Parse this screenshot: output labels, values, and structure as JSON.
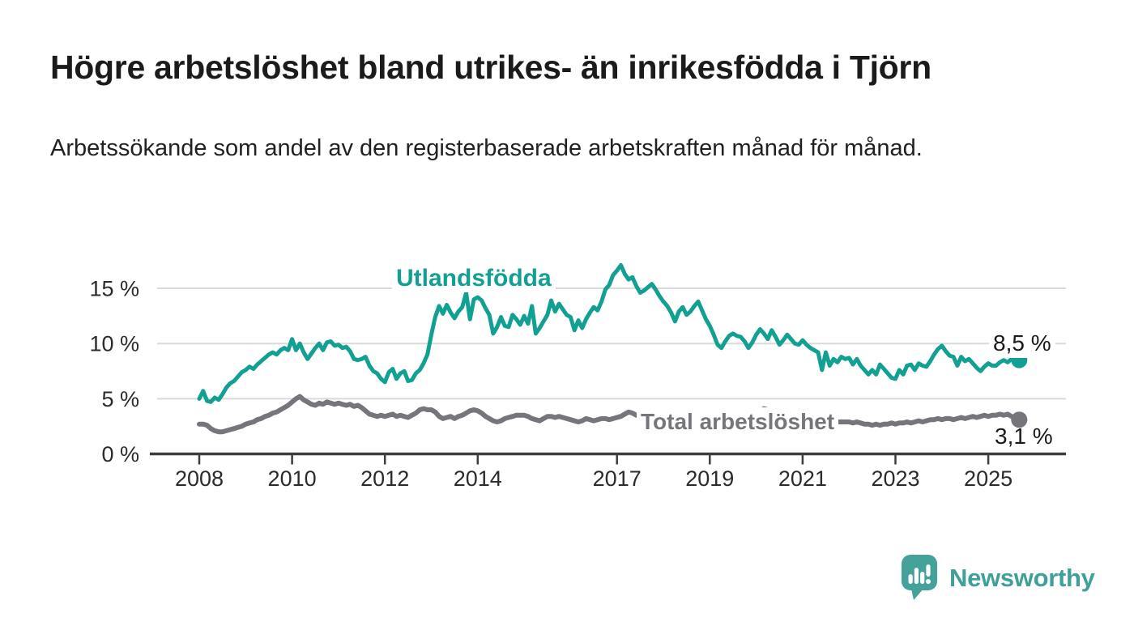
{
  "title": "Högre arbetslöshet bland utrikes- än inrikesfödda i Tjörn",
  "subtitle": "Arbetssökande som andel av den registerbaserade arbetskraften månad för månad.",
  "branding": {
    "name": "Newsworthy",
    "logo_icon": "bar-chart-speech-bubble-icon",
    "color": "#45a29b"
  },
  "chart_data": {
    "type": "line",
    "title": "Högre arbetslöshet bland utrikes- än inrikesfödda i Tjörn",
    "subtitle": "Arbetssökande som andel av den registerbaserade arbetskraften månad för månad.",
    "x_unit": "month",
    "x_start_year": 2008,
    "x_end_label": "Sep 2025",
    "ylim": [
      0,
      17.5
    ],
    "grid": "horizontal",
    "legend_position": "inline-labels",
    "y_ticks": [
      {
        "value": 0,
        "label": "0 %"
      },
      {
        "value": 5,
        "label": "5 %"
      },
      {
        "value": 10,
        "label": "10 %"
      },
      {
        "value": 15,
        "label": "15 %"
      }
    ],
    "x_ticks": [
      {
        "year": 2008,
        "label": "2008"
      },
      {
        "year": 2010,
        "label": "2010"
      },
      {
        "year": 2012,
        "label": "2012"
      },
      {
        "year": 2014,
        "label": "2014"
      },
      {
        "year": 2017,
        "label": "2017"
      },
      {
        "year": 2019,
        "label": "2019"
      },
      {
        "year": 2021,
        "label": "2021"
      },
      {
        "year": 2023,
        "label": "2023"
      },
      {
        "year": 2025,
        "label": "2025"
      }
    ],
    "series": [
      {
        "name": "Utlandsfödda",
        "color": "#11a092",
        "end_label": "8,5 %",
        "end_value": 8.5,
        "values": [
          5.0,
          5.7,
          4.8,
          4.7,
          5.1,
          4.9,
          5.4,
          6.0,
          6.4,
          6.6,
          7.0,
          7.4,
          7.6,
          7.9,
          7.7,
          8.1,
          8.4,
          8.7,
          9.0,
          9.2,
          9.0,
          9.4,
          9.6,
          9.4,
          10.4,
          9.4,
          10.0,
          9.2,
          8.6,
          9.1,
          9.6,
          10.0,
          9.4,
          10.1,
          10.2,
          9.8,
          9.9,
          9.6,
          9.7,
          9.3,
          8.6,
          8.5,
          8.6,
          8.8,
          8.0,
          7.5,
          7.3,
          6.8,
          6.5,
          7.4,
          7.7,
          6.8,
          7.3,
          7.5,
          6.6,
          6.7,
          7.3,
          7.6,
          8.2,
          9.0,
          10.8,
          12.4,
          13.4,
          12.7,
          13.5,
          12.8,
          12.3,
          12.9,
          13.3,
          14.6,
          12.2,
          14.0,
          14.2,
          13.9,
          13.2,
          12.6,
          10.9,
          11.5,
          12.4,
          11.6,
          11.5,
          12.6,
          12.2,
          11.7,
          12.5,
          11.8,
          13.4,
          10.9,
          11.4,
          12.0,
          12.6,
          13.9,
          12.9,
          13.6,
          13.1,
          12.6,
          12.4,
          11.2,
          12.1,
          11.4,
          12.2,
          12.8,
          13.3,
          13.0,
          13.8,
          14.9,
          15.3,
          16.2,
          16.6,
          17.1,
          16.3,
          15.8,
          16.0,
          15.2,
          14.6,
          14.8,
          15.1,
          15.4,
          14.9,
          14.3,
          13.8,
          13.4,
          12.8,
          12.0,
          12.9,
          13.3,
          12.6,
          12.9,
          13.4,
          13.8,
          13.0,
          12.2,
          11.6,
          10.8,
          9.9,
          9.6,
          10.2,
          10.7,
          10.9,
          10.7,
          10.6,
          10.2,
          9.6,
          10.1,
          10.8,
          11.3,
          10.9,
          10.4,
          11.2,
          10.6,
          9.9,
          10.3,
          10.8,
          10.4,
          10.0,
          9.9,
          10.3,
          9.9,
          9.6,
          9.4,
          9.2,
          7.6,
          9.2,
          8.0,
          8.6,
          8.3,
          8.8,
          8.6,
          8.7,
          8.1,
          8.6,
          8.0,
          7.6,
          7.2,
          7.6,
          7.2,
          8.1,
          7.7,
          7.3,
          6.9,
          6.8,
          7.6,
          7.2,
          8.0,
          8.1,
          7.6,
          8.2,
          8.0,
          7.9,
          8.4,
          9.0,
          9.5,
          9.8,
          9.3,
          8.9,
          8.8,
          8.0,
          8.8,
          8.4,
          8.6,
          8.2,
          7.8,
          7.5,
          7.9,
          8.2,
          8.0,
          8.0,
          8.3,
          8.5,
          8.3,
          8.6,
          8.4,
          8.5
        ]
      },
      {
        "name": "Total arbetslöshet",
        "color": "#77757c",
        "end_label": "3,1 %",
        "end_value": 3.1,
        "values": [
          2.7,
          2.7,
          2.6,
          2.3,
          2.1,
          2.0,
          2.0,
          2.1,
          2.2,
          2.3,
          2.4,
          2.5,
          2.7,
          2.8,
          2.9,
          3.1,
          3.2,
          3.4,
          3.5,
          3.7,
          3.8,
          4.0,
          4.2,
          4.4,
          4.7,
          5.0,
          5.2,
          4.9,
          4.7,
          4.5,
          4.4,
          4.6,
          4.5,
          4.7,
          4.6,
          4.5,
          4.6,
          4.5,
          4.4,
          4.5,
          4.3,
          4.4,
          4.2,
          3.9,
          3.6,
          3.5,
          3.4,
          3.5,
          3.4,
          3.5,
          3.6,
          3.4,
          3.5,
          3.4,
          3.3,
          3.5,
          3.7,
          4.0,
          4.1,
          4.0,
          4.0,
          3.8,
          3.4,
          3.2,
          3.3,
          3.4,
          3.2,
          3.4,
          3.5,
          3.7,
          3.9,
          4.0,
          3.9,
          3.7,
          3.4,
          3.2,
          3.0,
          2.9,
          3.0,
          3.2,
          3.3,
          3.4,
          3.5,
          3.5,
          3.5,
          3.4,
          3.2,
          3.1,
          3.0,
          3.2,
          3.4,
          3.4,
          3.3,
          3.4,
          3.3,
          3.2,
          3.1,
          3.0,
          2.9,
          3.0,
          3.2,
          3.1,
          3.0,
          3.1,
          3.2,
          3.2,
          3.1,
          3.2,
          3.3,
          3.4,
          3.6,
          3.8,
          3.7,
          3.5,
          3.4,
          3.3,
          3.2,
          3.1,
          3.1,
          3.0,
          2.9,
          2.8,
          2.8,
          2.7,
          2.8,
          2.9,
          2.8,
          2.9,
          3.0,
          2.9,
          2.8,
          2.8,
          2.9,
          2.8,
          2.7,
          2.8,
          2.9,
          3.0,
          3.1,
          3.0,
          3.1,
          3.2,
          3.3,
          3.5,
          3.7,
          3.9,
          4.1,
          4.0,
          3.9,
          4.0,
          3.8,
          3.7,
          3.6,
          3.5,
          3.4,
          3.3,
          3.3,
          3.2,
          3.1,
          3.0,
          3.0,
          2.9,
          2.9,
          2.8,
          2.8,
          2.9,
          2.9,
          2.9,
          2.9,
          2.8,
          2.9,
          2.8,
          2.7,
          2.7,
          2.6,
          2.7,
          2.6,
          2.7,
          2.7,
          2.8,
          2.7,
          2.8,
          2.8,
          2.9,
          2.8,
          2.9,
          3.0,
          2.9,
          3.0,
          3.1,
          3.1,
          3.2,
          3.1,
          3.2,
          3.2,
          3.1,
          3.2,
          3.3,
          3.2,
          3.3,
          3.4,
          3.3,
          3.4,
          3.5,
          3.4,
          3.5,
          3.5,
          3.6,
          3.5,
          3.6,
          3.4,
          3.2,
          3.1
        ]
      }
    ]
  }
}
